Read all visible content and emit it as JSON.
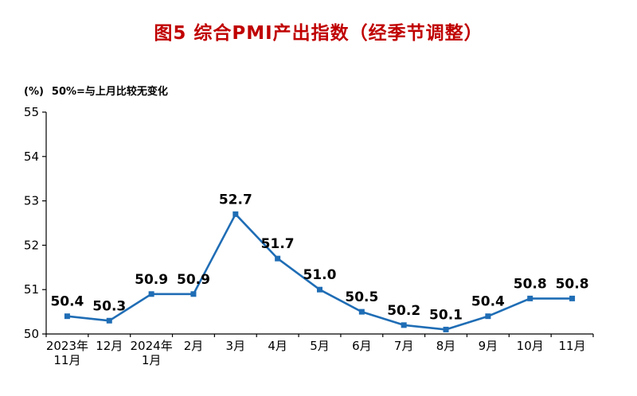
{
  "title": "图5  综合PMI产出指数（经季节调整）",
  "unit_label": "(%)",
  "note": "50%=与上月比较无变化",
  "colors": {
    "title": "#c00000",
    "line": "#1f6db5",
    "axis": "#000000",
    "text": "#000000"
  },
  "chart_data": {
    "type": "line",
    "title": "图5 综合PMI产出指数（经季节调整）",
    "categories": [
      "2023年\n11月",
      "12月",
      "2024年\n1月",
      "2月",
      "3月",
      "4月",
      "5月",
      "6月",
      "7月",
      "8月",
      "9月",
      "10月",
      "11月"
    ],
    "values": [
      50.4,
      50.3,
      50.9,
      50.9,
      52.7,
      51.7,
      51.0,
      50.5,
      50.2,
      50.1,
      50.4,
      50.8,
      50.8
    ],
    "ylabel": "(%)",
    "annotation": "50%=与上月比较无变化",
    "ylim": [
      50,
      55
    ],
    "yticks": [
      50,
      51,
      52,
      53,
      54,
      55
    ],
    "grid": false,
    "legend": null,
    "marker": "square",
    "value_labels": true
  }
}
